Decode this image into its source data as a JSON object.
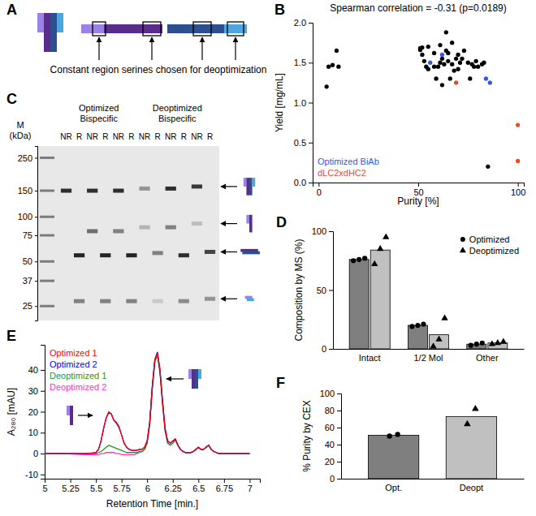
{
  "chart_data": [
    {
      "panel": "A",
      "type": "diagram",
      "annotation": "Constant region serines chosen for deoptimization"
    },
    {
      "panel": "B",
      "type": "scatter",
      "title": "Spearman correlation = -0.31 (p=0.0189)",
      "xlabel": "Purity [%]",
      "ylabel": "Yield [mg/mL]",
      "xlim": [
        -3,
        103
      ],
      "xticks": [
        0,
        50,
        100
      ],
      "ylim": [
        0,
        2
      ],
      "yticks": [
        {
          "value": 0,
          "label": "0.0"
        },
        {
          "value": 0.5,
          "label": "0.5"
        },
        {
          "value": 1,
          "label": "1.0"
        },
        {
          "value": 1.5,
          "label": "1.5"
        },
        {
          "value": 2,
          "label": "2.0"
        }
      ],
      "marker": "circle",
      "legend": "bottom-left",
      "series": [
        {
          "color": "#000000",
          "x": [
            4,
            5,
            7,
            9,
            10,
            51,
            51,
            52,
            52,
            53,
            54,
            55,
            55,
            58,
            58,
            59,
            60,
            61,
            61,
            62,
            62,
            63,
            64,
            64,
            65,
            65,
            66,
            67,
            67,
            68,
            69,
            70,
            70,
            71,
            72,
            73,
            75,
            76,
            77,
            78,
            79,
            80,
            82,
            83,
            85
          ],
          "values": [
            1.2,
            1.45,
            1.47,
            1.65,
            1.45,
            1.68,
            1.66,
            1.69,
            1.6,
            1.52,
            1.45,
            1.7,
            1.42,
            1.62,
            1.45,
            1.3,
            1.45,
            1.72,
            1.5,
            1.55,
            1.22,
            1.48,
            1.88,
            1.65,
            1.62,
            1.52,
            1.3,
            1.48,
            1.75,
            1.4,
            1.55,
            1.42,
            1.6,
            1.5,
            1.55,
            1.65,
            1.5,
            1.3,
            1.48,
            1.45,
            1.52,
            1.45,
            1.48,
            1.5,
            0.2
          ]
        },
        {
          "name": "Optimized BiAb",
          "color": "#3a56e8",
          "x": [
            56,
            62,
            84,
            86
          ],
          "values": [
            1.5,
            1.6,
            1.3,
            1.25
          ]
        },
        {
          "name": "dLC2xdHC2",
          "color": "#ee4a2a",
          "x": [
            69,
            100,
            100
          ],
          "values": [
            1.25,
            0.72,
            0.27
          ]
        }
      ]
    },
    {
      "panel": "C",
      "type": "gel",
      "ylabel": "M (kDa)",
      "log": "y",
      "ylim": [
        20,
        300
      ],
      "yticks": [
        250,
        150,
        100,
        75,
        50,
        37,
        25
      ],
      "groups": [
        {
          "name": "Optimized Bispecific",
          "lanes": [
            {
              "label": "NR",
              "bands": [
                {
                  "kda": 150,
                  "intensity": 0.9
                }
              ]
            },
            {
              "label": "R",
              "bands": [
                {
                  "kda": 55,
                  "intensity": 0.95
                },
                {
                  "kda": 27,
                  "intensity": 0.5
                }
              ]
            },
            {
              "label": "NR",
              "bands": [
                {
                  "kda": 150,
                  "intensity": 0.9
                },
                {
                  "kda": 80,
                  "intensity": 0.6
                }
              ]
            },
            {
              "label": "R",
              "bands": [
                {
                  "kda": 55,
                  "intensity": 0.95
                },
                {
                  "kda": 27,
                  "intensity": 0.5
                }
              ]
            },
            {
              "label": "NR",
              "bands": [
                {
                  "kda": 150,
                  "intensity": 0.9
                },
                {
                  "kda": 80,
                  "intensity": 0.5
                }
              ]
            },
            {
              "label": "R",
              "bands": [
                {
                  "kda": 55,
                  "intensity": 0.95
                },
                {
                  "kda": 27,
                  "intensity": 0.5
                }
              ]
            }
          ]
        },
        {
          "name": "Deoptimized Bispecific",
          "lanes": [
            {
              "label": "NR",
              "bands": [
                {
                  "kda": 155,
                  "intensity": 0.4
                },
                {
                  "kda": 85,
                  "intensity": 0.25
                }
              ]
            },
            {
              "label": "R",
              "bands": [
                {
                  "kda": 57,
                  "intensity": 0.5
                },
                {
                  "kda": 27,
                  "intensity": 0.15
                }
              ]
            },
            {
              "label": "NR",
              "bands": [
                {
                  "kda": 155,
                  "intensity": 0.9
                },
                {
                  "kda": 85,
                  "intensity": 0.5
                }
              ]
            },
            {
              "label": "R",
              "bands": [
                {
                  "kda": 55,
                  "intensity": 0.9
                },
                {
                  "kda": 27,
                  "intensity": 0.45
                }
              ]
            },
            {
              "label": "NR",
              "bands": [
                {
                  "kda": 160,
                  "intensity": 0.85
                },
                {
                  "kda": 90,
                  "intensity": 0.2
                }
              ]
            },
            {
              "label": "R",
              "bands": [
                {
                  "kda": 58,
                  "intensity": 0.8
                },
                {
                  "kda": 28,
                  "intensity": 0.4
                }
              ]
            }
          ]
        }
      ]
    },
    {
      "panel": "D",
      "type": "bar",
      "ylabel": "Composition by MS (%)",
      "categories": [
        "Intact",
        "1/2 Mol",
        "Other"
      ],
      "ylim": [
        0,
        100
      ],
      "yticks": [
        0,
        50,
        100
      ],
      "legend": "top-right",
      "series": [
        {
          "name": "Optimized",
          "color": "#7f7f7f",
          "marker": "circle",
          "values": [
            76,
            20,
            4
          ],
          "points": [
            [
              75,
              76,
              77
            ],
            [
              19,
              20,
              21
            ],
            [
              3,
              4,
              5
            ]
          ]
        },
        {
          "name": "Deoptimized",
          "color": "#c0c0c0",
          "marker": "triangle",
          "values": [
            84,
            12,
            5
          ],
          "points": [
            [
              72,
              85,
              95
            ],
            [
              2,
              8,
              26
            ],
            [
              4,
              5,
              6
            ]
          ]
        }
      ]
    },
    {
      "panel": "E",
      "type": "line",
      "xlabel": "Retention Time [min.]",
      "ylabel": "A₂₈₀ [mAU]",
      "xlim": [
        5,
        7.1
      ],
      "xticks": [
        5,
        5.25,
        5.5,
        5.75,
        6,
        6.25,
        6.5,
        6.75,
        7
      ],
      "ylim": [
        -12,
        52
      ],
      "yticks": [
        -10,
        0,
        10,
        20,
        30,
        40
      ],
      "legend": "top-left",
      "x": [
        5,
        5.1,
        5.2,
        5.3,
        5.4,
        5.45,
        5.5,
        5.525,
        5.55,
        5.575,
        5.6,
        5.625,
        5.65,
        5.675,
        5.7,
        5.725,
        5.75,
        5.775,
        5.8,
        5.825,
        5.85,
        5.875,
        5.9,
        5.925,
        5.95,
        5.975,
        6,
        6.025,
        6.05,
        6.075,
        6.1,
        6.125,
        6.15,
        6.175,
        6.2,
        6.225,
        6.25,
        6.275,
        6.3,
        6.325,
        6.35,
        6.375,
        6.4,
        6.425,
        6.45,
        6.475,
        6.5,
        6.525,
        6.55,
        6.575,
        6.6,
        6.625,
        6.65,
        6.675,
        6.7,
        6.725,
        6.75,
        6.8,
        6.9,
        7
      ],
      "series": [
        {
          "name": "Optimized 1",
          "color": "#ff0000",
          "values": [
            0,
            0,
            0,
            0,
            0,
            0.2,
            0.5,
            2,
            6,
            12,
            17,
            20,
            19,
            16,
            15,
            13,
            9,
            5,
            3,
            2,
            1.5,
            1.5,
            1.5,
            2,
            2,
            3,
            6,
            15,
            32,
            45,
            48,
            40,
            25,
            12,
            6,
            5,
            6,
            7,
            4,
            2,
            1,
            0.5,
            0.5,
            0.5,
            1,
            2,
            3,
            2,
            2,
            3,
            4,
            2,
            1,
            0.5,
            0,
            0,
            0,
            0,
            0,
            0
          ]
        },
        {
          "name": "Optimized 2",
          "color": "#0000ff",
          "values": [
            0,
            0,
            0,
            0,
            0,
            0.2,
            0.5,
            2,
            6,
            12,
            17,
            19.5,
            19,
            16,
            14.5,
            12.5,
            9,
            5,
            3,
            2,
            1.5,
            1.5,
            1.5,
            2,
            2,
            3,
            6,
            15,
            32,
            45,
            48.5,
            40,
            25,
            12,
            6,
            5,
            6,
            7,
            4,
            2,
            1,
            0.5,
            0.5,
            0.5,
            1,
            2,
            3,
            2,
            2,
            3,
            4,
            2,
            1,
            0.5,
            0,
            0,
            0,
            0,
            0,
            0
          ]
        },
        {
          "name": "Deoptimized 1",
          "color": "#1a9a1a",
          "values": [
            0,
            0,
            0,
            0,
            0,
            0,
            0,
            0.5,
            1,
            2,
            3,
            4,
            3.5,
            3,
            2.5,
            2,
            1.5,
            1,
            0.5,
            0.5,
            0.5,
            0.5,
            0.5,
            1,
            1,
            2,
            5,
            14,
            31,
            44,
            47,
            39,
            24,
            11,
            5,
            4,
            5,
            6.5,
            4,
            2,
            1,
            0.5,
            0.5,
            0.5,
            1,
            2,
            3,
            2,
            2,
            3,
            4,
            2,
            1,
            0.5,
            0,
            0,
            0,
            0,
            0,
            0
          ]
        },
        {
          "name": "Deoptimized 2",
          "color": "#ff33cc",
          "values": [
            0,
            0,
            0,
            -0.3,
            -0.5,
            -0.5,
            -0.5,
            -0.5,
            0,
            0,
            0.5,
            0.5,
            0.5,
            0.5,
            0,
            0,
            -0.5,
            -0.5,
            -0.5,
            -0.5,
            -0.5,
            -0.5,
            0,
            0.5,
            1,
            2,
            5,
            14,
            31,
            44,
            47,
            39,
            24,
            11,
            5,
            4,
            5,
            6.5,
            4,
            2,
            1,
            0.5,
            0.5,
            0.5,
            1,
            2,
            3,
            2,
            2,
            3,
            4,
            2,
            1,
            0.5,
            0,
            0,
            0,
            0,
            0,
            0
          ]
        }
      ]
    },
    {
      "panel": "F",
      "type": "bar",
      "ylabel": "% Purity by CEX",
      "categories": [
        "Opt.",
        "Deopt"
      ],
      "ylim": [
        0,
        100
      ],
      "yticks": [
        0,
        20,
        40,
        60,
        80,
        100
      ],
      "series": [
        {
          "color": "#7f7f7f",
          "marker": "circle",
          "values": [
            51,
            null
          ],
          "points": [
            [
              50,
              52
            ],
            []
          ]
        },
        {
          "color": "#c0c0c0",
          "marker": "triangle",
          "values": [
            null,
            73
          ],
          "points": [
            [],
            [
              64,
              82
            ]
          ]
        }
      ]
    }
  ]
}
